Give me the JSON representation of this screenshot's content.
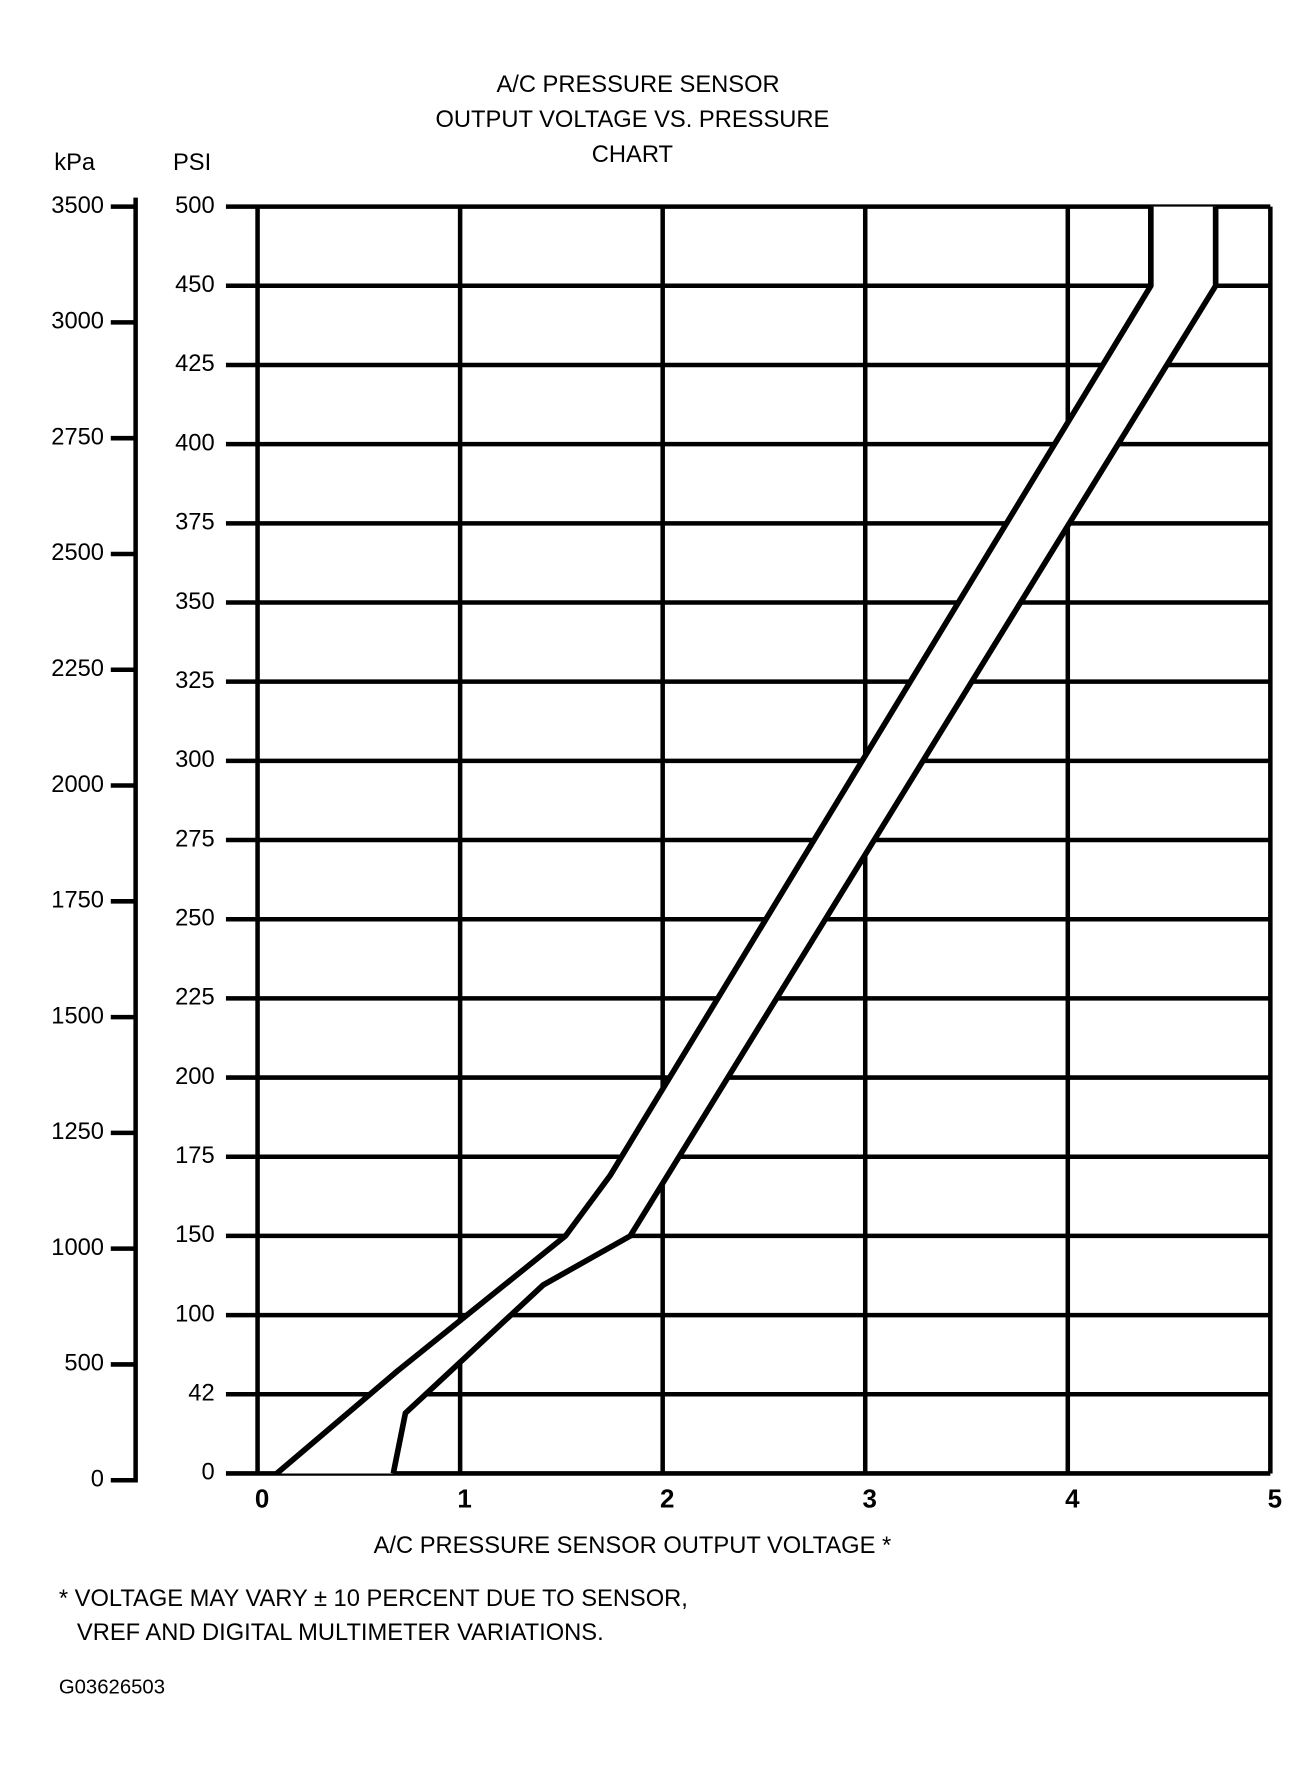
{
  "chart_data": {
    "type": "line",
    "title": [
      "A/C PRESSURE SENSOR",
      "OUTPUT VOLTAGE VS. PRESSURE",
      "CHART"
    ],
    "ylabel": "PSI",
    "y2label": "kPa",
    "xlabel": "A/C PRESSURE SENSOR OUTPUT VOLTAGE *",
    "footnote": [
      "* VOLTAGE MAY VARY ± 10 PERCENT DUE TO SENSOR,",
      "VREF AND DIGITAL MULTIMETER VARIATIONS."
    ],
    "figure_id": "G03626503",
    "xlim": [
      0,
      5
    ],
    "xticks": [
      0,
      1,
      2,
      3,
      4,
      5
    ],
    "ylim": [
      0,
      500
    ],
    "yticks": [
      0,
      42,
      100,
      150,
      175,
      200,
      225,
      250,
      275,
      300,
      325,
      350,
      375,
      400,
      425,
      450,
      500
    ],
    "y2lim": [
      0,
      3500
    ],
    "y2ticks": [
      0,
      500,
      1000,
      1250,
      1500,
      1750,
      2000,
      2250,
      2500,
      2750,
      3000,
      3500
    ],
    "y_scale": "evenly spaced ticks",
    "grid": true,
    "series": [
      {
        "color": "#000000",
        "x": [
          0.095,
          0.69,
          1.52,
          1.74,
          4.41,
          4.41
        ],
        "values": [
          0,
          59,
          150,
          169,
          450,
          500
        ]
      },
      {
        "color": "#000000",
        "x": [
          0.67,
          0.73,
          1.41,
          1.84,
          4.73,
          4.73
        ],
        "values": [
          0,
          32,
          119,
          150,
          450,
          500
        ]
      }
    ]
  }
}
